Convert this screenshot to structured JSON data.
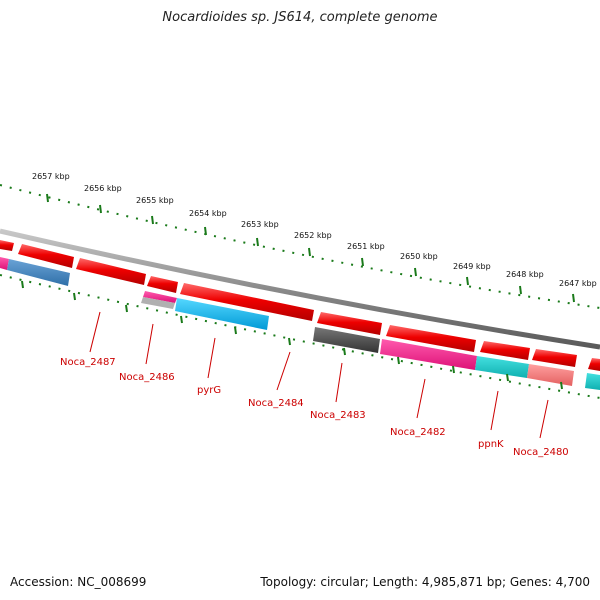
{
  "title": "Nocardioides sp. JS614, complete genome",
  "footer": {
    "accession": "Accession: NC_008699",
    "summary": "Topology: circular; Length: 4,985,871 bp; Genes: 4,700"
  },
  "colors": {
    "backbone": "#8a8a8a",
    "tick": "#1a7a1a",
    "gene_forward": "#ee0000",
    "label": "#cc0000"
  },
  "kbp_labels": [
    "2657 kbp",
    "2656 kbp",
    "2655 kbp",
    "2654 kbp",
    "2653 kbp",
    "2652 kbp",
    "2651 kbp",
    "2650 kbp",
    "2649 kbp",
    "2648 kbp",
    "2647 kbp"
  ],
  "gene_labels": [
    "Noca_2487",
    "Noca_2486",
    "pyrG",
    "Noca_2484",
    "Noca_2483",
    "Noca_2482",
    "ppnK",
    "Noca_2480"
  ]
}
